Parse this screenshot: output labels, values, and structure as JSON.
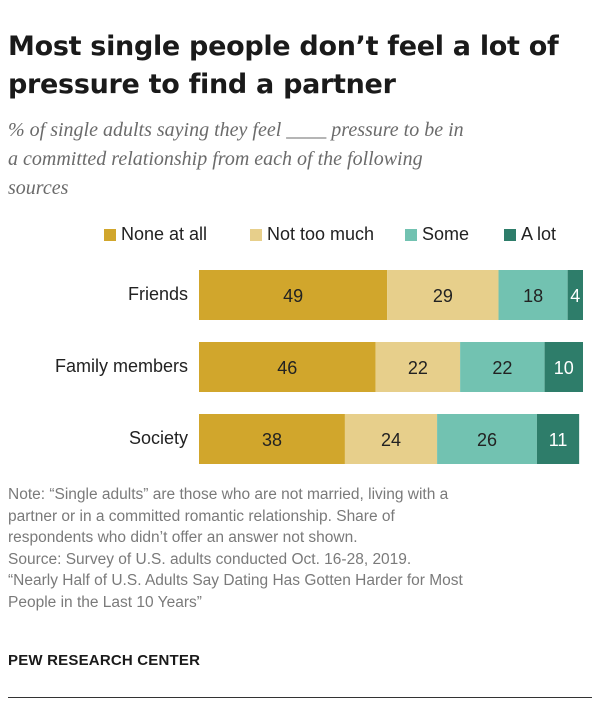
{
  "title_line1": "Most single people don’t feel a lot of",
  "title_line2": "pressure to find a partner",
  "subtitle_line1": "% of single adults saying they feel ____ pressure to be in",
  "subtitle_line2": "a committed relationship from each of the following",
  "subtitle_line3": "sources",
  "legend": [
    {
      "label": "None at all",
      "color": "#D1A62C"
    },
    {
      "label": "Not too much",
      "color": "#E7CF8B"
    },
    {
      "label": "Some",
      "color": "#72C2B1"
    },
    {
      "label": "A lot",
      "color": "#2E7D6A"
    }
  ],
  "chart_data": {
    "type": "bar",
    "orientation": "horizontal",
    "stacked": true,
    "categories": [
      "Friends",
      "Family members",
      "Society"
    ],
    "series": [
      {
        "name": "None at all",
        "values": [
          49,
          46,
          38
        ],
        "color": "#D1A62C"
      },
      {
        "name": "Not too much",
        "values": [
          29,
          22,
          24
        ],
        "color": "#E7CF8B"
      },
      {
        "name": "Some",
        "values": [
          18,
          22,
          26
        ],
        "color": "#72C2B1"
      },
      {
        "name": "A lot",
        "values": [
          4,
          10,
          11
        ],
        "color": "#2E7D6A"
      }
    ],
    "xlim": [
      0,
      100
    ],
    "grid": false,
    "legend_position": "top"
  },
  "note_lines": [
    "Note: “Single adults” are those who are not married, living with a",
    "partner or in a committed romantic relationship. Share of",
    "respondents who didn’t offer an answer not shown.",
    "Source: Survey of U.S. adults conducted Oct. 16-28, 2019.",
    "“Nearly Half of U.S. Adults Say Dating Has Gotten Harder for Most",
    "People in the Last 10 Years”"
  ],
  "footer": "PEW RESEARCH CENTER"
}
